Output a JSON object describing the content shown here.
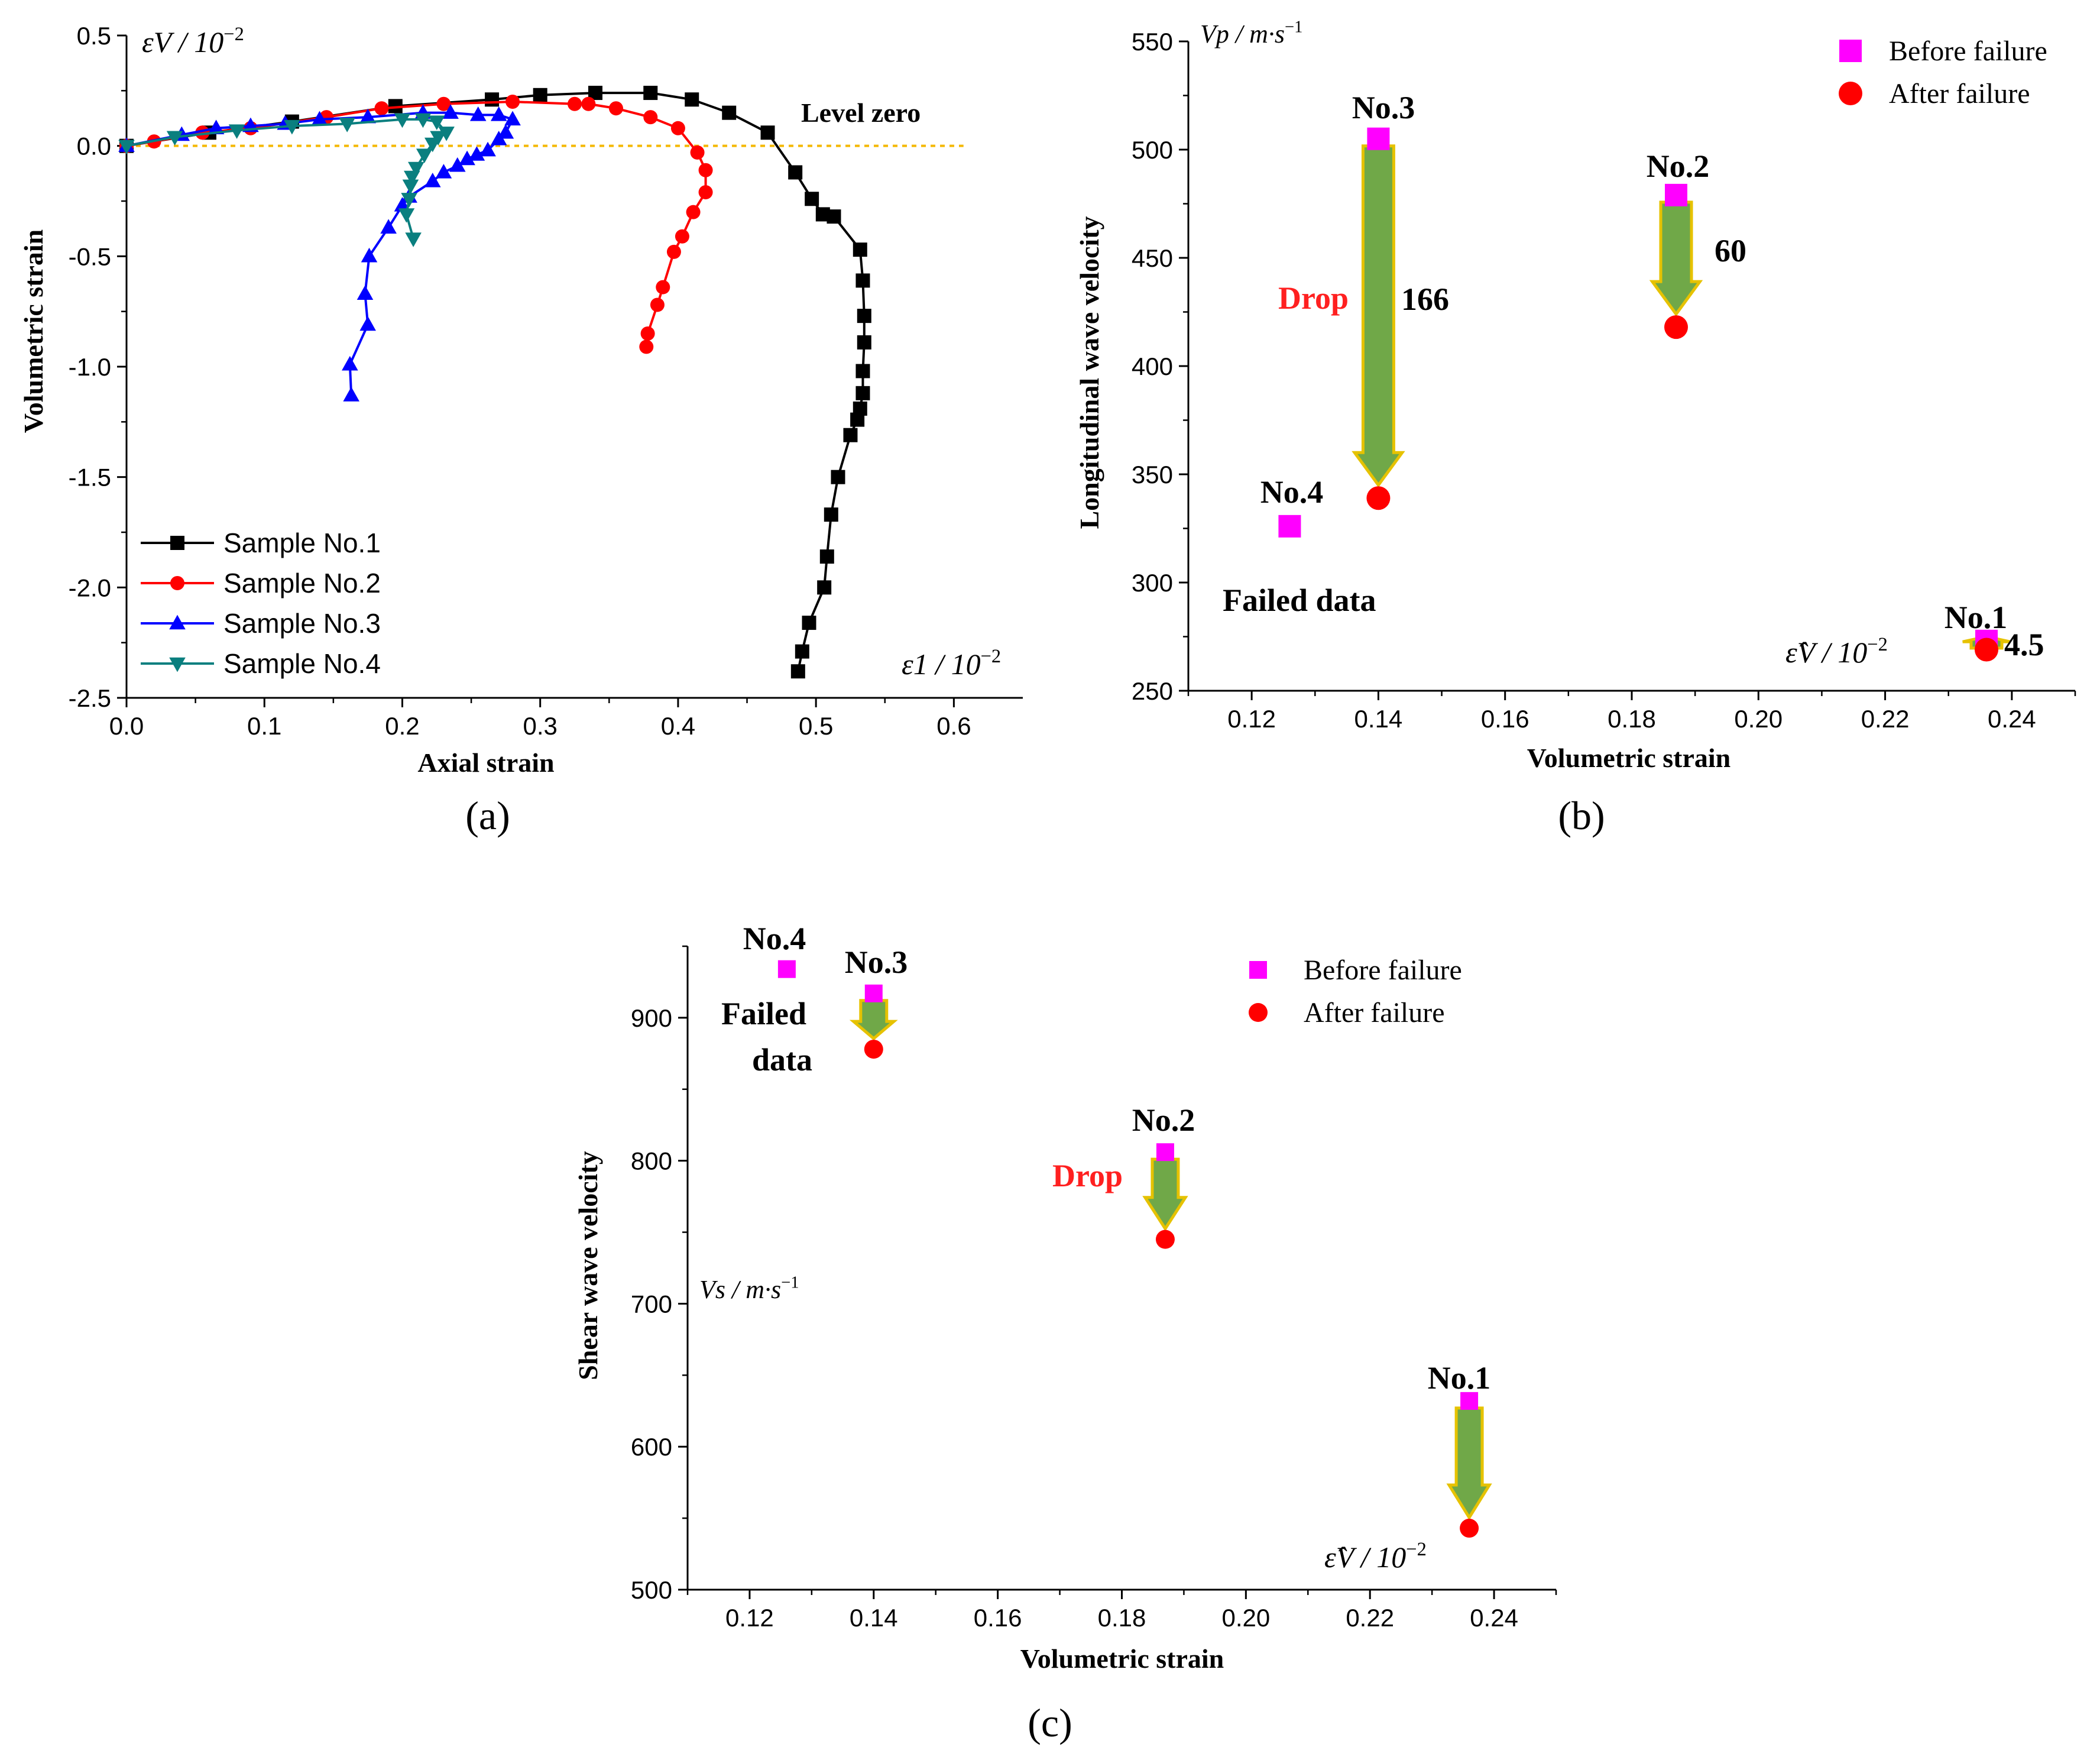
{
  "chart_data": [
    {
      "panel": "(a)",
      "type": "line",
      "xlabel": "Axial strain",
      "ylabel": "Volumetric strain",
      "x_unit": "ε1 / 10^-2",
      "y_unit": "εV / 10^-2",
      "xlim": [
        0,
        0.65
      ],
      "ylim": [
        -2.5,
        0.5
      ],
      "xticks": [
        "0.0",
        "0.1",
        "0.2",
        "0.3",
        "0.4",
        "0.5",
        "0.6"
      ],
      "yticks": [
        "0.5",
        "0.0",
        "-0.5",
        "-1.0",
        "-1.5",
        "-2.0",
        "-2.5"
      ],
      "reference_line": {
        "label": "Level zero",
        "y": 0,
        "color": "#f4b800"
      },
      "series": [
        {
          "name": "Sample No.1",
          "color": "#000000",
          "marker": "square",
          "points": [
            [
              0,
              0
            ],
            [
              0.06,
              0.06
            ],
            [
              0.12,
              0.11
            ],
            [
              0.195,
              0.18
            ],
            [
              0.265,
              0.21
            ],
            [
              0.3,
              0.23
            ],
            [
              0.34,
              0.24
            ],
            [
              0.38,
              0.24
            ],
            [
              0.41,
              0.21
            ],
            [
              0.437,
              0.15
            ],
            [
              0.465,
              0.06
            ],
            [
              0.485,
              -0.12
            ],
            [
              0.497,
              -0.24
            ],
            [
              0.505,
              -0.31
            ],
            [
              0.513,
              -0.32
            ],
            [
              0.532,
              -0.47
            ],
            [
              0.534,
              -0.61
            ],
            [
              0.535,
              -0.77
            ],
            [
              0.535,
              -0.89
            ],
            [
              0.534,
              -1.02
            ],
            [
              0.534,
              -1.12
            ],
            [
              0.532,
              -1.19
            ],
            [
              0.53,
              -1.24
            ],
            [
              0.525,
              -1.31
            ],
            [
              0.516,
              -1.5
            ],
            [
              0.511,
              -1.67
            ],
            [
              0.508,
              -1.86
            ],
            [
              0.506,
              -2.0
            ],
            [
              0.495,
              -2.16
            ],
            [
              0.49,
              -2.29
            ],
            [
              0.487,
              -2.38
            ]
          ]
        },
        {
          "name": "Sample No.2",
          "color": "#ff0000",
          "marker": "circle",
          "points": [
            [
              0,
              0
            ],
            [
              0.02,
              0.02
            ],
            [
              0.055,
              0.06
            ],
            [
              0.09,
              0.08
            ],
            [
              0.145,
              0.13
            ],
            [
              0.185,
              0.17
            ],
            [
              0.23,
              0.19
            ],
            [
              0.28,
              0.2
            ],
            [
              0.325,
              0.19
            ],
            [
              0.335,
              0.19
            ],
            [
              0.355,
              0.17
            ],
            [
              0.38,
              0.13
            ],
            [
              0.4,
              0.08
            ],
            [
              0.414,
              -0.03
            ],
            [
              0.42,
              -0.11
            ],
            [
              0.42,
              -0.21
            ],
            [
              0.411,
              -0.3
            ],
            [
              0.403,
              -0.41
            ],
            [
              0.397,
              -0.48
            ],
            [
              0.389,
              -0.64
            ],
            [
              0.385,
              -0.72
            ],
            [
              0.378,
              -0.85
            ],
            [
              0.377,
              -0.91
            ]
          ]
        },
        {
          "name": "Sample No.3",
          "color": "#0000ff",
          "marker": "triangle-up",
          "points": [
            [
              0,
              0
            ],
            [
              0.04,
              0.05
            ],
            [
              0.065,
              0.08
            ],
            [
              0.09,
              0.09
            ],
            [
              0.115,
              0.1
            ],
            [
              0.14,
              0.12
            ],
            [
              0.175,
              0.13
            ],
            [
              0.215,
              0.15
            ],
            [
              0.235,
              0.15
            ],
            [
              0.255,
              0.14
            ],
            [
              0.27,
              0.14
            ],
            [
              0.28,
              0.12
            ],
            [
              0.275,
              0.06
            ],
            [
              0.27,
              0.03
            ],
            [
              0.262,
              -0.02
            ],
            [
              0.254,
              -0.04
            ],
            [
              0.247,
              -0.06
            ],
            [
              0.24,
              -0.09
            ],
            [
              0.23,
              -0.12
            ],
            [
              0.222,
              -0.16
            ],
            [
              0.205,
              -0.23
            ],
            [
              0.2,
              -0.27
            ],
            [
              0.19,
              -0.37
            ],
            [
              0.176,
              -0.5
            ],
            [
              0.173,
              -0.67
            ],
            [
              0.175,
              -0.81
            ],
            [
              0.162,
              -0.99
            ],
            [
              0.163,
              -1.13
            ]
          ]
        },
        {
          "name": "Sample No.4",
          "color": "#0a7f7f",
          "marker": "triangle-down",
          "points": [
            [
              0,
              0
            ],
            [
              0.035,
              0.04
            ],
            [
              0.08,
              0.07
            ],
            [
              0.12,
              0.09
            ],
            [
              0.16,
              0.1
            ],
            [
              0.2,
              0.12
            ],
            [
              0.215,
              0.12
            ],
            [
              0.225,
              0.11
            ],
            [
              0.232,
              0.06
            ],
            [
              0.226,
              0.04
            ],
            [
              0.222,
              0.01
            ],
            [
              0.216,
              -0.04
            ],
            [
              0.21,
              -0.1
            ],
            [
              0.207,
              -0.14
            ],
            [
              0.206,
              -0.18
            ],
            [
              0.205,
              -0.24
            ],
            [
              0.203,
              -0.31
            ],
            [
              0.208,
              -0.42
            ]
          ]
        }
      ]
    },
    {
      "panel": "(b)",
      "type": "scatter",
      "xlabel": "Volumetric strain",
      "ylabel": "Longitudinal wave velocity",
      "x_unit": "ε̂V / 10^-2",
      "y_unit": "Vp / m·s^-1",
      "xlim": [
        0.11,
        0.25
      ],
      "ylim": [
        250,
        550
      ],
      "xticks": [
        "0.12",
        "0.14",
        "0.16",
        "0.18",
        "0.20",
        "0.22",
        "0.24"
      ],
      "yticks": [
        "550",
        "500",
        "450",
        "400",
        "350",
        "300",
        "250"
      ],
      "legend": [
        "Before failure",
        "After failure"
      ],
      "samples": [
        {
          "name": "No.1",
          "x": 0.236,
          "before": 273,
          "after": 269,
          "drop": "4.5"
        },
        {
          "name": "No.2",
          "x": 0.187,
          "before": 479,
          "after": 418,
          "drop": "60"
        },
        {
          "name": "No.3",
          "x": 0.14,
          "before": 505,
          "after": 339,
          "drop": "166"
        },
        {
          "name": "No.4",
          "x": 0.126,
          "before": 326,
          "after": null,
          "note": "Failed data"
        }
      ],
      "drop_label": "Drop"
    },
    {
      "panel": "(c)",
      "type": "scatter",
      "xlabel": "Volumetric strain",
      "ylabel": "Shear wave velocity",
      "x_unit": "ε̂V / 10^-2",
      "y_unit": "Vs / m·s^-1",
      "xlim": [
        0.11,
        0.25
      ],
      "ylim": [
        500,
        950
      ],
      "xticks": [
        "0.12",
        "0.14",
        "0.16",
        "0.18",
        "0.20",
        "0.22",
        "0.24"
      ],
      "yticks": [
        "900",
        "800",
        "700",
        "600",
        "500"
      ],
      "legend": [
        "Before failure",
        "After failure"
      ],
      "samples": [
        {
          "name": "No.1",
          "x": 0.236,
          "before": 632,
          "after": 543
        },
        {
          "name": "No.2",
          "x": 0.187,
          "before": 806,
          "after": 745
        },
        {
          "name": "No.3",
          "x": 0.14,
          "before": 917,
          "after": 878
        },
        {
          "name": "No.4",
          "x": 0.126,
          "before": 934,
          "after": null,
          "note": "Failed data"
        }
      ],
      "drop_label": "Drop"
    }
  ],
  "colors": {
    "before": "#ff00ff",
    "after": "#ff0000",
    "arrow_fill": "#70a848",
    "arrow_edge": "#e6c200",
    "level_zero": "#f4b800"
  }
}
